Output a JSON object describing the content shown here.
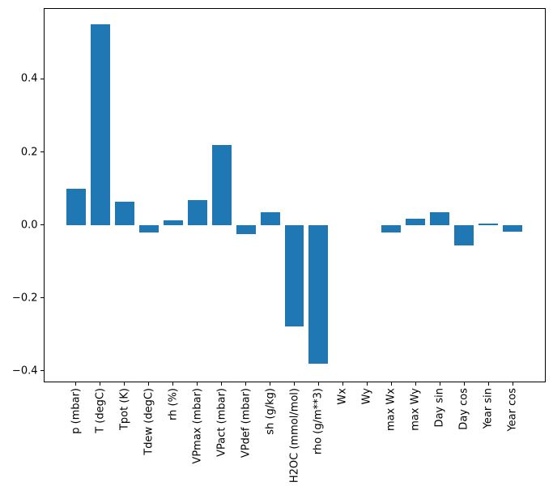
{
  "chart_data": {
    "type": "bar",
    "title": "",
    "xlabel": "",
    "ylabel": "",
    "categories": [
      "p (mbar)",
      "T (degC)",
      "Tpot (K)",
      "Tdew (degC)",
      "rh (%)",
      "VPmax (mbar)",
      "VPact (mbar)",
      "VPdef (mbar)",
      "sh (g/kg)",
      "H2OC (mmol/mol)",
      "rho (g/m**3)",
      "Wx",
      "Wy",
      "max Wx",
      "max Wy",
      "Day sin",
      "Day cos",
      "Year sin",
      "Year cos"
    ],
    "values": [
      0.1,
      0.549,
      0.064,
      -0.02,
      0.013,
      0.069,
      0.22,
      -0.024,
      0.035,
      -0.277,
      -0.381,
      0.0,
      0.0,
      -0.02,
      0.016,
      0.034,
      -0.057,
      0.003,
      -0.018
    ],
    "ylim": [
      -0.43,
      0.594
    ],
    "y_ticks": [
      0.4,
      0.2,
      0.0,
      -0.2,
      -0.4
    ],
    "y_tick_labels": [
      "0.4",
      "0.2",
      "0.0",
      "−0.2",
      "−0.4"
    ],
    "x_tick_rotation": 90,
    "grid": false,
    "legend": "none",
    "bar_color": "#1f77b4",
    "axis_color": "#000000",
    "text_color": "#000000",
    "background_color": "#ffffff"
  }
}
